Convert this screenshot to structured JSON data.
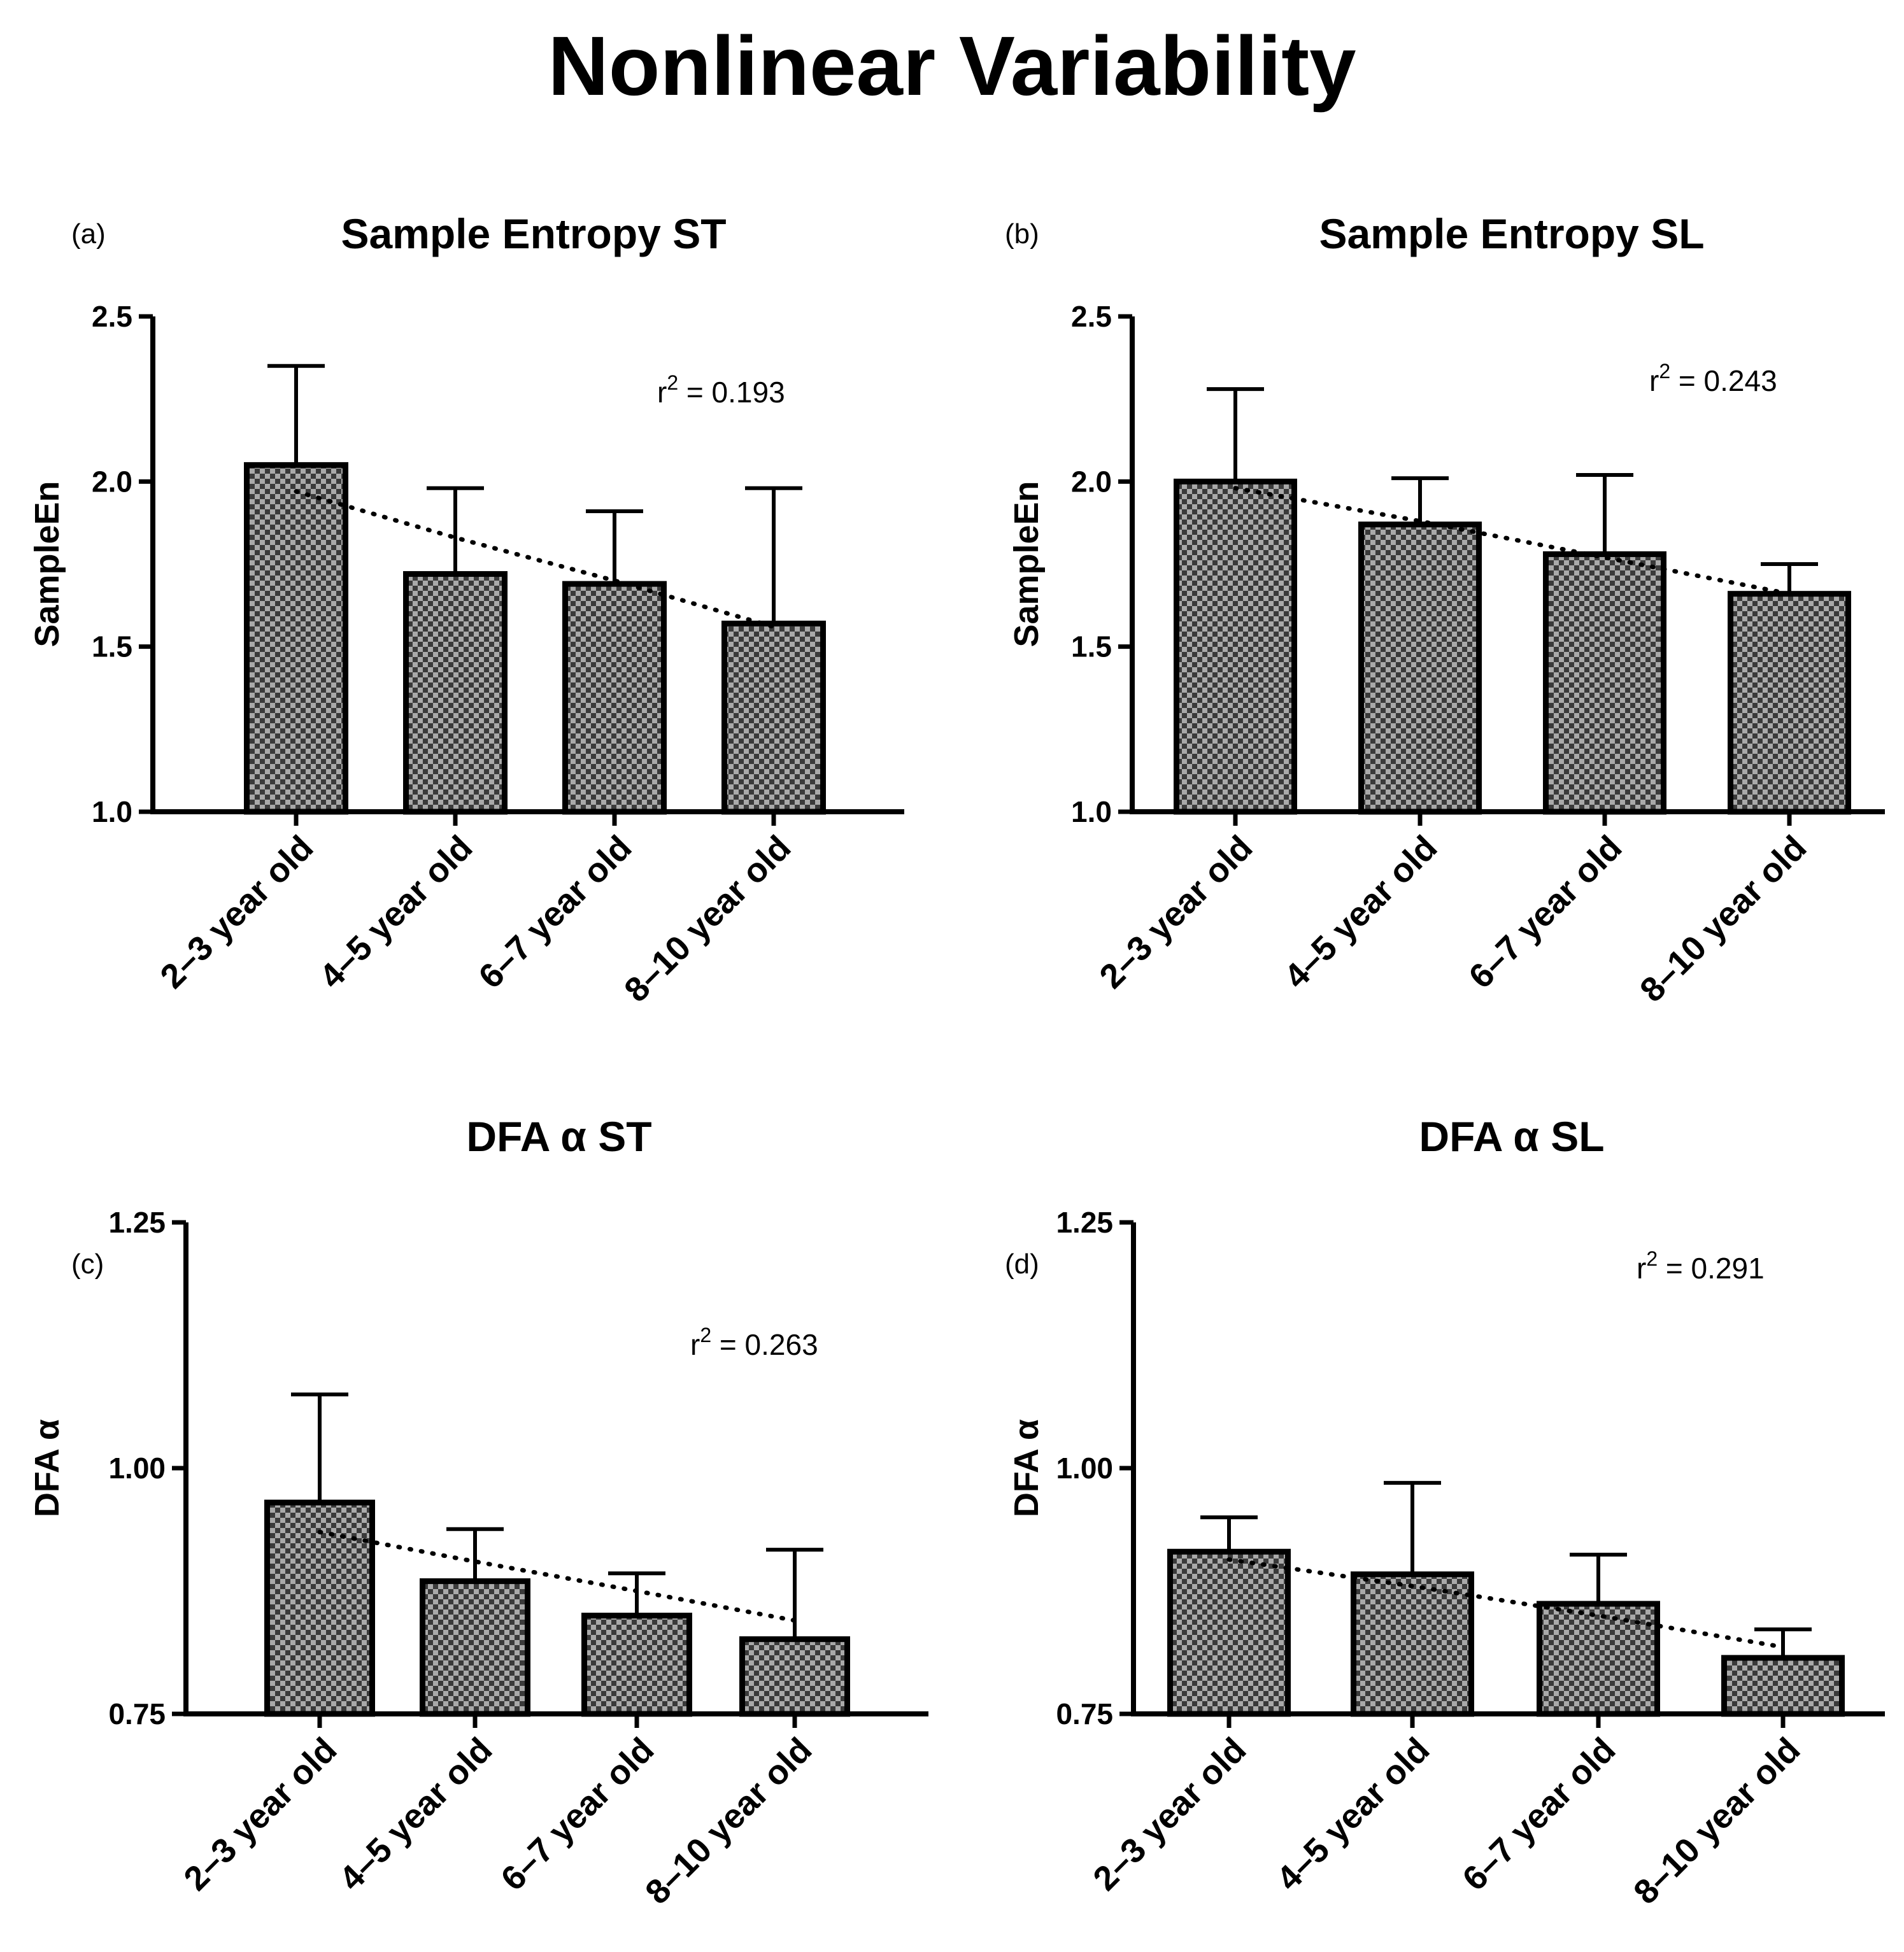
{
  "title": "Nonlinear Variability",
  "colors": {
    "axis": "#000000",
    "bar_dark": "#3a3a3a",
    "bar_light": "#a9a9a9"
  },
  "chart_data": [
    {
      "type": "bar",
      "panel_label": "(a)",
      "title": "Sample Entropy ST",
      "ylabel": "SampleEn",
      "ylim": [
        1.0,
        2.5
      ],
      "yticks": [
        "1.0",
        "1.5",
        "2.0",
        "2.5"
      ],
      "categories": [
        "2–3 year old",
        "4–5 year old",
        "6–7 year old",
        "8–10 year old"
      ],
      "values": [
        2.05,
        1.72,
        1.69,
        1.57
      ],
      "error_upper": [
        2.35,
        1.98,
        1.91,
        1.98
      ],
      "trend": [
        1.97,
        1.83,
        1.7,
        1.56
      ],
      "r_squared_label": "r",
      "r_squared_sup": "2",
      "r_squared_value": " = 0.193"
    },
    {
      "type": "bar",
      "panel_label": "(b)",
      "title": "Sample Entropy SL",
      "ylabel": "SampleEn",
      "ylim": [
        1.0,
        2.5
      ],
      "yticks": [
        "1.0",
        "1.5",
        "2.0",
        "2.5"
      ],
      "categories": [
        "2–3 year old",
        "4–5 year old",
        "6–7 year old",
        "8–10 year old"
      ],
      "values": [
        2.0,
        1.87,
        1.78,
        1.66
      ],
      "error_upper": [
        2.28,
        2.01,
        2.02,
        1.75
      ],
      "trend": [
        1.98,
        1.88,
        1.77,
        1.66
      ],
      "r_squared_label": "r",
      "r_squared_sup": "2",
      "r_squared_value": " = 0.243"
    },
    {
      "type": "bar",
      "panel_label": "(c)",
      "title": "DFA α ST",
      "ylabel": "DFA α",
      "ylim": [
        0.75,
        1.25
      ],
      "yticks": [
        "0.75",
        "1.00",
        "1.25"
      ],
      "categories": [
        "2–3 year old",
        "4–5 year old",
        "6–7 year old",
        "8–10 year old"
      ],
      "values": [
        0.965,
        0.885,
        0.85,
        0.826
      ],
      "error_upper": [
        1.075,
        0.938,
        0.893,
        0.917
      ],
      "trend": [
        0.935,
        0.905,
        0.875,
        0.845
      ],
      "r_squared_label": "r",
      "r_squared_sup": "2",
      "r_squared_value": " = 0.263"
    },
    {
      "type": "bar",
      "panel_label": "(d)",
      "title": "DFA α SL",
      "ylabel": "DFA α",
      "ylim": [
        0.75,
        1.25
      ],
      "yticks": [
        "0.75",
        "1.00",
        "1.25"
      ],
      "categories": [
        "2–3 year old",
        "4–5 year old",
        "6–7 year old",
        "8–10 year old"
      ],
      "values": [
        0.915,
        0.892,
        0.862,
        0.807
      ],
      "error_upper": [
        0.95,
        0.985,
        0.912,
        0.836
      ],
      "trend": [
        0.907,
        0.88,
        0.85,
        0.818
      ],
      "r_squared_label": "r",
      "r_squared_sup": "2",
      "r_squared_value": " = 0.291"
    }
  ]
}
